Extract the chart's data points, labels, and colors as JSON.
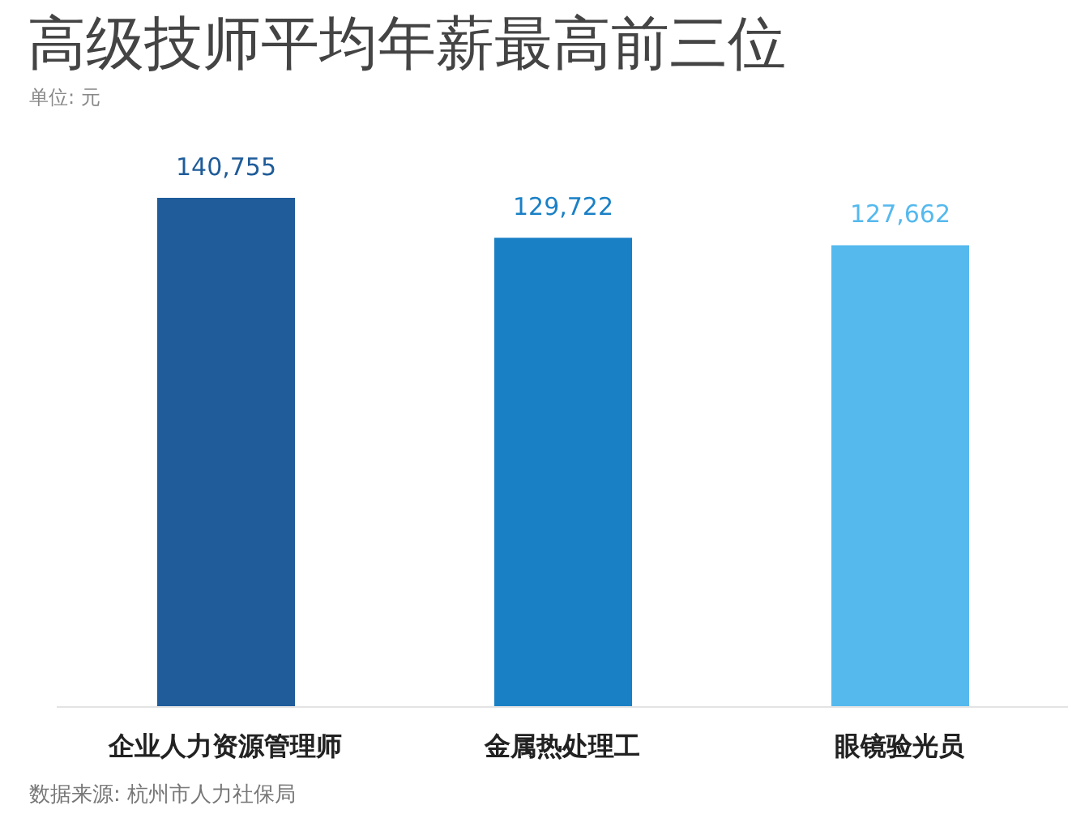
{
  "chart_data": {
    "type": "bar",
    "title": "高级技师平均年薪最高前三位",
    "subtitle": "单位: 元",
    "categories": [
      "企业人力资源管理师",
      "金属热处理工",
      "眼镜验光员"
    ],
    "values": [
      140755,
      129722,
      127662
    ],
    "value_labels": [
      "140,755",
      "129,722",
      "127,662"
    ],
    "colors": [
      "#1f5c99",
      "#1a80c6",
      "#55b9ee"
    ],
    "annotations": [
      "数据来源: 杭州市人力社保局"
    ]
  }
}
